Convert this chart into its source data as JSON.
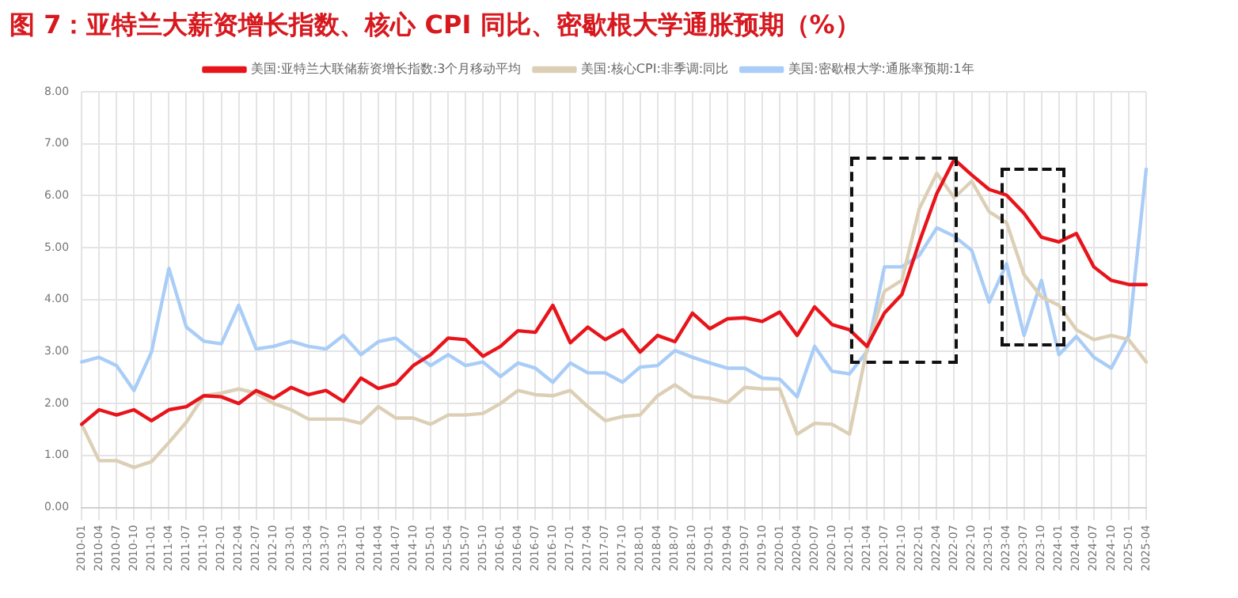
{
  "chart_data": {
    "type": "line",
    "title": "图 7：亚特兰大薪资增长指数、核心 CPI 同比、密歇根大学通胀预期（%）",
    "categories": [
      "2010-01",
      "2010-04",
      "2010-07",
      "2010-10",
      "2011-01",
      "2011-04",
      "2011-07",
      "2011-10",
      "2012-01",
      "2012-04",
      "2012-07",
      "2012-10",
      "2013-01",
      "2013-04",
      "2013-07",
      "2013-10",
      "2014-01",
      "2014-04",
      "2014-07",
      "2014-10",
      "2015-01",
      "2015-04",
      "2015-07",
      "2015-10",
      "2016-01",
      "2016-04",
      "2016-07",
      "2016-10",
      "2017-01",
      "2017-04",
      "2017-07",
      "2017-10",
      "2018-01",
      "2018-04",
      "2018-07",
      "2018-10",
      "2019-01",
      "2019-04",
      "2019-07",
      "2019-10",
      "2020-01",
      "2020-04",
      "2020-07",
      "2020-10",
      "2021-01",
      "2021-04",
      "2021-07",
      "2021-10",
      "2022-01",
      "2022-04",
      "2022-07",
      "2022-10",
      "2023-01",
      "2023-04",
      "2023-07",
      "2023-10",
      "2024-01",
      "2024-04",
      "2024-07",
      "2024-10",
      "2025-01",
      "2025-04"
    ],
    "series": [
      {
        "name": "美国:亚特兰大联储薪资增长指数:3个月移动平均",
        "color": "#e8141b",
        "values": [
          1.6,
          1.88,
          1.78,
          1.88,
          1.67,
          1.88,
          1.94,
          2.15,
          2.13,
          2.0,
          2.25,
          2.1,
          2.31,
          2.17,
          2.25,
          2.04,
          2.49,
          2.29,
          2.38,
          2.73,
          2.94,
          3.26,
          3.23,
          2.91,
          3.1,
          3.4,
          3.37,
          3.89,
          3.17,
          3.47,
          3.23,
          3.42,
          2.99,
          3.31,
          3.19,
          3.74,
          3.44,
          3.63,
          3.65,
          3.58,
          3.76,
          3.31,
          3.86,
          3.52,
          3.42,
          3.1,
          3.74,
          4.1,
          5.11,
          6.04,
          6.7,
          6.4,
          6.12,
          6.01,
          5.66,
          5.2,
          5.11,
          5.27,
          4.63,
          4.37,
          4.29,
          4.29
        ]
      },
      {
        "name": "美国:核心CPI:非季调:同比",
        "color": "#dccfb6",
        "values": [
          1.6,
          0.9,
          0.9,
          0.77,
          0.88,
          1.25,
          1.64,
          2.15,
          2.2,
          2.28,
          2.2,
          2.0,
          1.88,
          1.7,
          1.7,
          1.7,
          1.62,
          1.94,
          1.72,
          1.72,
          1.6,
          1.78,
          1.78,
          1.81,
          2.0,
          2.25,
          2.17,
          2.15,
          2.25,
          1.94,
          1.67,
          1.75,
          1.78,
          2.15,
          2.36,
          2.13,
          2.1,
          2.02,
          2.31,
          2.28,
          2.28,
          1.41,
          1.62,
          1.6,
          1.41,
          3.05,
          4.16,
          4.37,
          5.75,
          6.43,
          5.96,
          6.28,
          5.69,
          5.48,
          4.48,
          4.05,
          3.89,
          3.42,
          3.23,
          3.31,
          3.23,
          2.8
        ]
      },
      {
        "name": "美国:密歇根大学:通胀率预期:1年",
        "color": "#a9cdf7",
        "values": [
          2.8,
          2.89,
          2.73,
          2.25,
          2.99,
          4.6,
          3.47,
          3.2,
          3.15,
          3.89,
          3.05,
          3.1,
          3.2,
          3.1,
          3.05,
          3.31,
          2.94,
          3.19,
          3.26,
          2.99,
          2.73,
          2.94,
          2.73,
          2.8,
          2.52,
          2.78,
          2.68,
          2.41,
          2.78,
          2.59,
          2.59,
          2.41,
          2.7,
          2.73,
          3.02,
          2.89,
          2.78,
          2.68,
          2.68,
          2.49,
          2.47,
          2.13,
          3.1,
          2.62,
          2.57,
          3.0,
          4.63,
          4.63,
          4.85,
          5.38,
          5.22,
          4.95,
          3.95,
          4.69,
          3.31,
          4.37,
          2.94,
          3.29,
          2.89,
          2.68,
          3.31,
          6.51
        ]
      }
    ],
    "ylim": [
      0,
      8
    ],
    "yticks": [
      {
        "value": 0,
        "label": "0.00"
      },
      {
        "value": 1,
        "label": "1.00"
      },
      {
        "value": 2,
        "label": "2.00"
      },
      {
        "value": 3,
        "label": "3.00"
      },
      {
        "value": 4,
        "label": "4.00"
      },
      {
        "value": 5,
        "label": "5.00"
      },
      {
        "value": 6,
        "label": "6.00"
      },
      {
        "value": 7,
        "label": "7.00"
      },
      {
        "value": 8,
        "label": "8.00"
      }
    ],
    "grid": true,
    "legend": "top",
    "marker": "none",
    "line_style": "solid"
  }
}
